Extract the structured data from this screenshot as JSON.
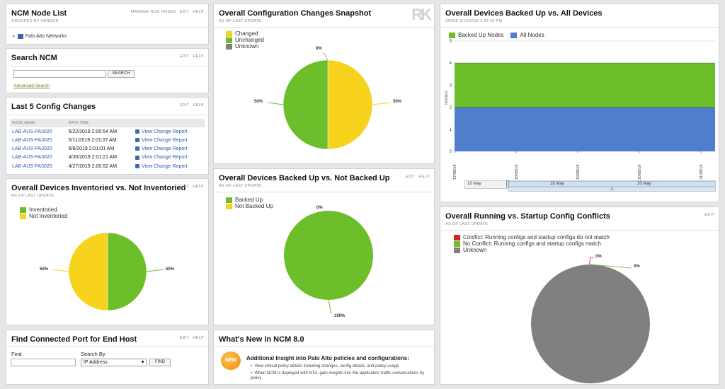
{
  "node_list": {
    "title": "NCM Node List",
    "subtitle": "GROUPED BY VENDOR",
    "actions": [
      "MANAGE NCM NODES",
      "EDIT",
      "HELP"
    ],
    "tree_expander": "▸",
    "vendor": "Palo Alto Networks"
  },
  "search": {
    "title": "Search NCM",
    "actions": [
      "EDIT",
      "HELP"
    ],
    "button": "SEARCH",
    "advanced": "Advanced Search"
  },
  "last_changes": {
    "title": "Last 5 Config Changes",
    "actions": [
      "EDIT",
      "HELP"
    ],
    "columns": [
      "NODE NAME",
      "DATE TIME"
    ],
    "rows": [
      {
        "node": "LAB-AUS-PA3020",
        "time": "5/22/2019 2:00:54 AM",
        "link": "View Change Report"
      },
      {
        "node": "LAB-AUS-PA3020",
        "time": "5/11/2019 2:01:07 AM",
        "link": "View Change Report"
      },
      {
        "node": "LAB-AUS-PA3020",
        "time": "5/8/2019 2:01:01 AM",
        "link": "View Change Report"
      },
      {
        "node": "LAB-AUS-PA3020",
        "time": "4/30/2019 2:01:21 AM",
        "link": "View Change Report"
      },
      {
        "node": "LAB-AUS-PA3020",
        "time": "4/27/2019 2:00:52 AM",
        "link": "View Change Report"
      }
    ]
  },
  "inventoried": {
    "title": "Overall Devices Inventoried vs. Not Inventoried",
    "subtitle": "AS OF LAST UPDATE",
    "actions": [
      "EDIT",
      "HELP"
    ],
    "legend": [
      "Inventoried",
      "Not Inventoried"
    ],
    "left_label": "50%",
    "right_label": "50%"
  },
  "find_port": {
    "title": "Find Connected Port for End Host",
    "actions": [
      "EDIT",
      "HELP"
    ],
    "find_label": "Find",
    "search_by_label": "Search By",
    "search_by_value": "IP Address",
    "dropdown_arrow": "▼",
    "button": "FIND"
  },
  "snapshot": {
    "title": "Overall Configuration Changes Snapshot",
    "subtitle": "AS OF LAST UPDATE",
    "legend": [
      "Changed",
      "Unchanged",
      "Unknown"
    ],
    "top_label": "0%",
    "left_label": "50%",
    "right_label": "50%"
  },
  "backed_not": {
    "title": "Overall Devices Backed Up vs. Not Backed Up",
    "subtitle": "AS OF LAST UPDATE",
    "actions": [
      "EDIT",
      "HELP"
    ],
    "legend": [
      "Backed Up",
      "Not Backed Up"
    ],
    "top_label": "0%",
    "bottom_label": "100%"
  },
  "whats_new": {
    "title": "What's New in NCM 8.0",
    "badge": "NEW",
    "headline": "Additional Insight into Palo Alto policies and configurations:",
    "bullets": [
      "View critical policy details including changes, config details, and policy usage",
      "When NCM is deployed with NTA, gain insights into the application traffic conversations by policy"
    ]
  },
  "backed_all": {
    "title": "Overall Devices Backed Up vs. All Devices",
    "subtitle": "SINCE 5/16/2019 2:23:42 PM",
    "legend": [
      "Backed Up Nodes",
      "All Nodes"
    ],
    "ylabel": "NODES",
    "nav_labels": [
      "16 May",
      "18 May",
      "20 May"
    ],
    "scroll_grip": "III"
  },
  "conflicts": {
    "title": "Overall Running vs. Startup Config Conflicts",
    "subtitle": "AS OF LAST UPDATE",
    "actions": [
      "EDIT"
    ],
    "legend": [
      "Conflict: Running configs and startup configs do not match",
      "No Conflict: Running configs and startup configs match",
      "Unknown"
    ],
    "label_a": "0%",
    "label_b": "0%"
  },
  "colors": {
    "green": "#6cbf2a",
    "yellow": "#f7d31e",
    "gray": "#808080",
    "blue": "#4f7fcc",
    "red": "#d9231f",
    "link": "#2a5db0"
  },
  "chart_data": [
    {
      "type": "pie",
      "title": "Overall Devices Inventoried vs. Not Inventoried",
      "labels": [
        "Inventoried",
        "Not Inventoried"
      ],
      "values": [
        50,
        50
      ]
    },
    {
      "type": "pie",
      "title": "Overall Configuration Changes Snapshot",
      "labels": [
        "Changed",
        "Unchanged",
        "Unknown"
      ],
      "values": [
        50,
        50,
        0
      ]
    },
    {
      "type": "pie",
      "title": "Overall Devices Backed Up vs. Not Backed Up",
      "labels": [
        "Backed Up",
        "Not Backed Up"
      ],
      "values": [
        100,
        0
      ]
    },
    {
      "type": "area",
      "title": "Overall Devices Backed Up vs. All Devices",
      "x": [
        "17/05/19",
        "18/05/19",
        "19/05/19",
        "20/05/19",
        "21/05/19"
      ],
      "series": [
        {
          "name": "Backed Up Nodes",
          "values": [
            4,
            4,
            4,
            4,
            4
          ]
        },
        {
          "name": "All Nodes",
          "values": [
            2,
            2,
            2,
            2,
            2
          ]
        }
      ],
      "ylim": [
        0,
        5
      ],
      "yticks": [
        0,
        1,
        2,
        3,
        4,
        5
      ],
      "ylabel": "NODES",
      "grid": true,
      "legend": "top-left"
    },
    {
      "type": "pie",
      "title": "Overall Running vs. Startup Config Conflicts",
      "labels": [
        "Conflict",
        "No Conflict",
        "Unknown"
      ],
      "values": [
        0,
        0,
        100
      ]
    }
  ]
}
